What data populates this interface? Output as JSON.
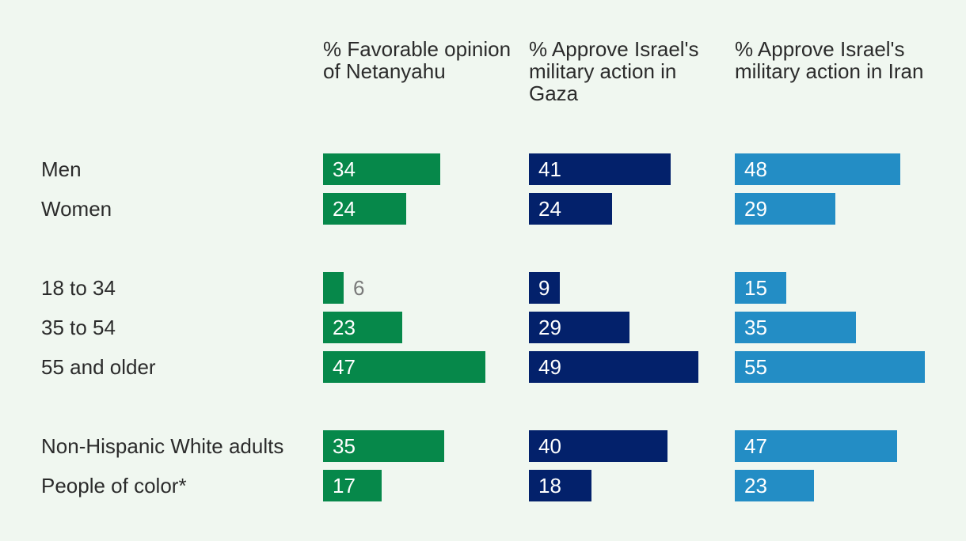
{
  "chart_data": {
    "type": "bar",
    "orientation": "horizontal",
    "title": "",
    "categories": [
      "Men",
      "Women",
      "18 to 34",
      "35 to 54",
      "55 and older",
      "Non-Hispanic White adults",
      "People of color*"
    ],
    "groups": [
      [
        "Men",
        "Women"
      ],
      [
        "18 to 34",
        "35 to 54",
        "55 and older"
      ],
      [
        "Non-Hispanic White adults",
        "People of color*"
      ]
    ],
    "series": [
      {
        "name": "% Favorable opinion of Netanyahu",
        "color": "#06884a",
        "values": [
          34,
          24,
          6,
          23,
          47,
          35,
          17
        ]
      },
      {
        "name": "% Approve Israel's military action in Gaza",
        "color": "#03216b",
        "values": [
          41,
          24,
          9,
          29,
          49,
          40,
          18
        ]
      },
      {
        "name": "% Approve Israel's military action in Iran",
        "color": "#238dc5",
        "values": [
          48,
          29,
          15,
          35,
          55,
          47,
          23
        ]
      }
    ],
    "xlim": [
      0,
      55
    ]
  }
}
